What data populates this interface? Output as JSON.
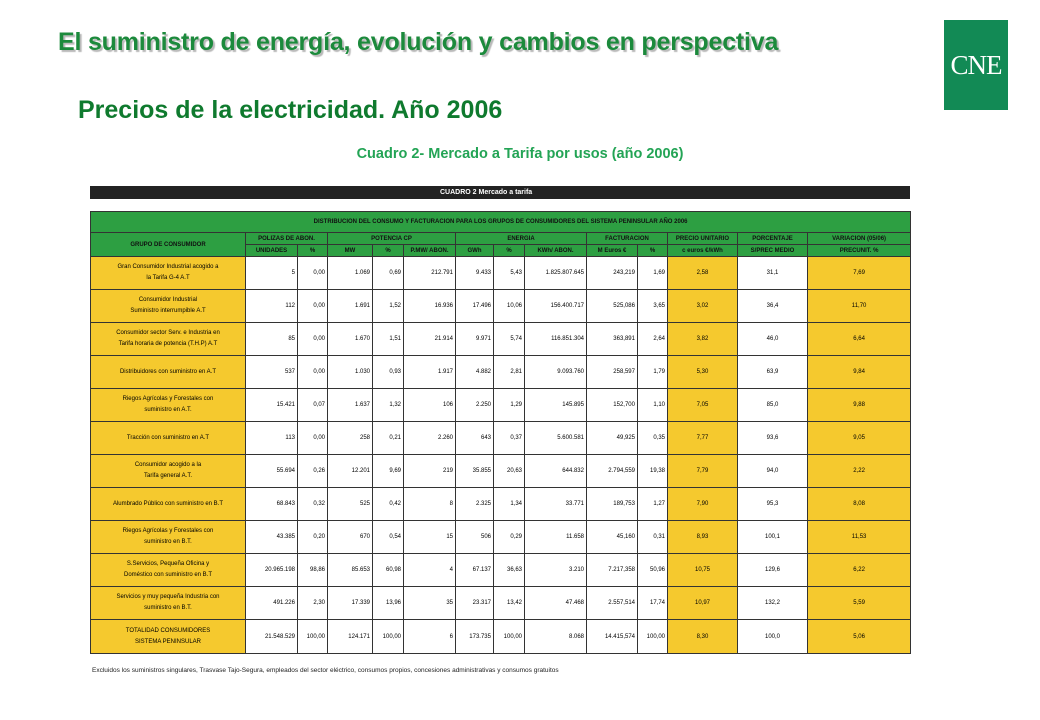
{
  "header": {
    "title": "El suministro de energía, evolución y cambios en perspectiva",
    "subtitle": "Precios  de la  electricidad. Año 2006",
    "logo_text": "CNE",
    "logo_color": "#128a55",
    "title_color": "#1c8a3c"
  },
  "cuadro": {
    "title": "Cuadro 2- Mercado a Tarifa por usos (año 2006)",
    "bar_label": "CUADRO 2   Mercado a tarifa",
    "distribution_heading": "DISTRIBUCION DEL CONSUMO Y FACTURACION PARA LOS GRUPOS DE CONSUMIDORES DEL SISTEMA PENINSULAR AÑO 2006",
    "group_headers": [
      "GRUPO DE CONSUMIDOR",
      "POLIZAS DE ABON.",
      "POTENCIA CP",
      "ENERGIA",
      "FACTURACION",
      "PRECIO UNITARIO",
      "PORCENTAJE",
      "VARIACION (05/06)"
    ],
    "sub_headers": [
      "UNIDADES",
      "%",
      "MW",
      "%",
      "P.MW/ ABON.",
      "GWh",
      "%",
      "KWh/ ABON.",
      "M Euros €",
      "%",
      "c euros €/kWh",
      "S/PREC MEDIO",
      "PRECUNIT. %"
    ],
    "rows": [
      {
        "group": [
          "Gran Consumidor Industrial acogido a",
          "la Tarifa G-4 A.T"
        ],
        "values": [
          "5",
          "0,00",
          "1.069",
          "0,69",
          "212.791",
          "9.433",
          "5,43",
          "1.825.807.645",
          "243,219",
          "1,69",
          "2,58",
          "31,1",
          "7,69"
        ]
      },
      {
        "group": [
          "Consumidor Industrial",
          "Suministro interrumpible A.T"
        ],
        "values": [
          "112",
          "0,00",
          "1.691",
          "1,52",
          "16.936",
          "17.496",
          "10,06",
          "156.400.717",
          "525,086",
          "3,65",
          "3,02",
          "36,4",
          "11,70"
        ]
      },
      {
        "group": [
          "Consumidor sector Serv. e Industria en",
          "Tarifa horaria de potencia (T.H.P)   A.T"
        ],
        "values": [
          "85",
          "0,00",
          "1.670",
          "1,51",
          "21.914",
          "9.971",
          "5,74",
          "116.851.304",
          "363,891",
          "2,64",
          "3,82",
          "46,0",
          "6,64"
        ]
      },
      {
        "group": [
          "Distribuidores con suministro en  A.T"
        ],
        "values": [
          "537",
          "0,00",
          "1.030",
          "0,93",
          "1.917",
          "4.882",
          "2,81",
          "9.093.760",
          "258,597",
          "1,79",
          "5,30",
          "63,9",
          "9,84"
        ]
      },
      {
        "group": [
          "Riegos Agrícolas y Forestales con",
          "suministro en A.T."
        ],
        "values": [
          "15.421",
          "0,07",
          "1.637",
          "1,32",
          "106",
          "2.250",
          "1,29",
          "145.895",
          "152,700",
          "1,10",
          "7,05",
          "85,0",
          "9,88"
        ]
      },
      {
        "group": [
          "Tracción con suministro en  A.T"
        ],
        "values": [
          "113",
          "0,00",
          "258",
          "0,21",
          "2.260",
          "643",
          "0,37",
          "5.600.581",
          "49,925",
          "0,35",
          "7,77",
          "93,6",
          "9,05"
        ]
      },
      {
        "group": [
          "Consumidor acogido a la",
          "Tarifa general A.T."
        ],
        "values": [
          "55.694",
          "0,26",
          "12.201",
          "9,69",
          "219",
          "35.855",
          "20,63",
          "644.832",
          "2.794,559",
          "19,38",
          "7,79",
          "94,0",
          "2,22"
        ]
      },
      {
        "group": [
          "Alumbrado Público con suministro en B.T"
        ],
        "values": [
          "68.843",
          "0,32",
          "525",
          "0,42",
          "8",
          "2.325",
          "1,34",
          "33.771",
          "189,753",
          "1,27",
          "7,90",
          "95,3",
          "8,08"
        ]
      },
      {
        "group": [
          "Riegos Agrícolas y Forestales con",
          "suministro en B.T."
        ],
        "values": [
          "43.385",
          "0,20",
          "670",
          "0,54",
          "15",
          "506",
          "0,29",
          "11.658",
          "45,160",
          "0,31",
          "8,93",
          "100,1",
          "11,53"
        ]
      },
      {
        "group": [
          "S.Servicios, Pequeña Oficina y",
          "Doméstico con suministro en  B.T"
        ],
        "values": [
          "20.965.198",
          "98,86",
          "85.653",
          "60,98",
          "4",
          "67.137",
          "36,63",
          "3.210",
          "7.217,358",
          "50,96",
          "10,75",
          "129,6",
          "6,22"
        ]
      },
      {
        "group": [
          "Servicios y muy pequeña Industria con",
          "suministro en B.T."
        ],
        "values": [
          "491.226",
          "2,30",
          "17.339",
          "13,96",
          "35",
          "23.317",
          "13,42",
          "47.468",
          "2.557,514",
          "17,74",
          "10,97",
          "132,2",
          "5,59"
        ]
      },
      {
        "group": [
          "TOTALIDAD CONSUMIDORES",
          "SISTEMA PENINSULAR"
        ],
        "values": [
          "21.548.529",
          "100,00",
          "124.171",
          "100,00",
          "6",
          "173.735",
          "100,00",
          "8.068",
          "14.415,574",
          "100,00",
          "8,30",
          "100,0",
          "5,06"
        ]
      }
    ],
    "footnote": "Excluidos los suministros singulares, Trasvase Tajo-Segura, empleados del sector eléctrico, consumos propios, concesiones administrativas y consumos gratuitos"
  }
}
